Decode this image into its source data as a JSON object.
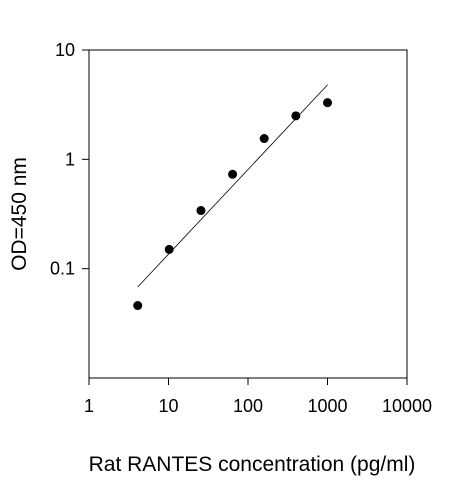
{
  "chart_data": {
    "type": "scatter",
    "title": "",
    "xlabel": "Rat RANTES concentration (pg/ml)",
    "ylabel": "OD=450 nm",
    "x_scale": "log",
    "y_scale": "log",
    "xlim": [
      1,
      10000
    ],
    "ylim": [
      0.01,
      10
    ],
    "x_ticks": [
      1,
      10,
      100,
      1000,
      10000
    ],
    "x_tick_labels": [
      "1",
      "10",
      "100",
      "1000",
      "10000"
    ],
    "y_ticks": [
      0.1,
      1,
      10
    ],
    "y_tick_labels": [
      "0.1",
      "1",
      "10"
    ],
    "grid": false,
    "legend": "none",
    "series": [
      {
        "x": [
          4.1,
          10.2,
          25.6,
          64,
          160,
          400,
          1000
        ],
        "y": [
          0.046,
          0.15,
          0.34,
          0.73,
          1.55,
          2.5,
          3.3
        ]
      }
    ],
    "fit_line": {
      "x": [
        4.1,
        1000
      ],
      "y": [
        0.068,
        4.8
      ]
    },
    "colors": {
      "marker": "#000000",
      "line": "#000000",
      "axis": "#000000"
    }
  }
}
